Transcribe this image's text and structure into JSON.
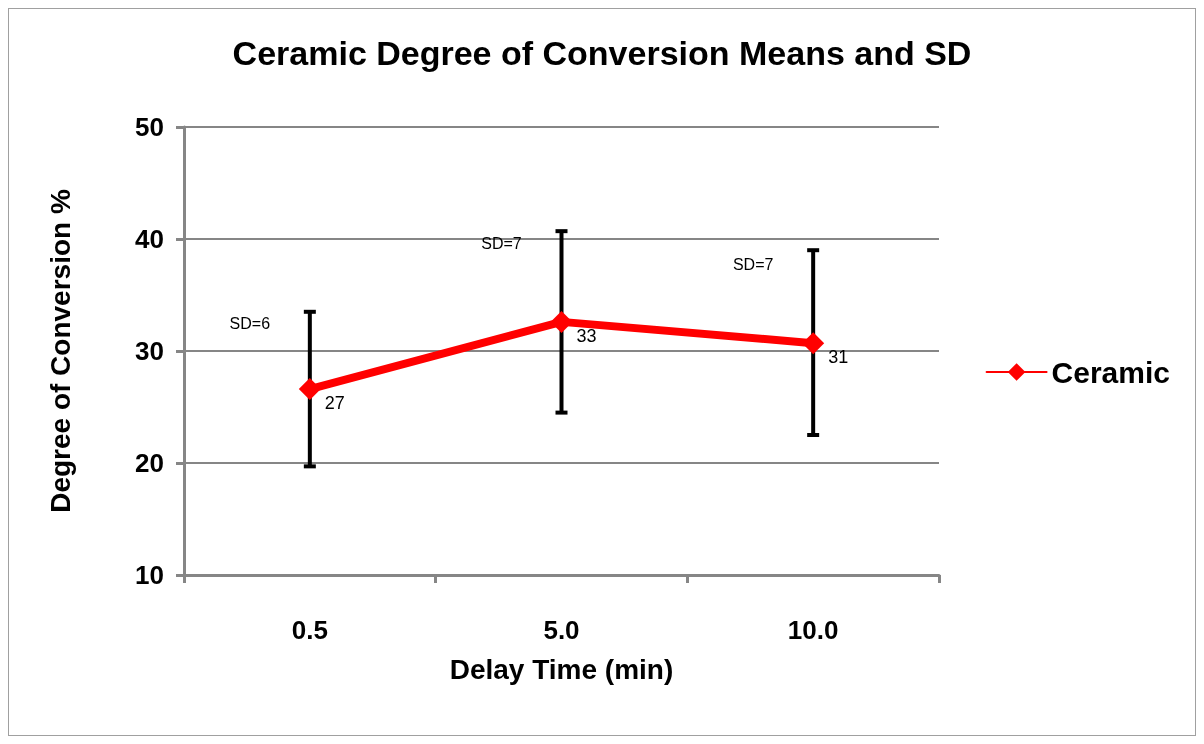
{
  "chart_data": {
    "type": "line",
    "title": "Ceramic Degree of Conversion Means and SD",
    "xlabel": "Delay Time (min)",
    "ylabel": "Degree of Conversion %",
    "categories": [
      "0.5",
      "5.0",
      "10.0"
    ],
    "series": [
      {
        "name": "Ceramic",
        "color": "#ff0000",
        "values": [
          26.6,
          32.6,
          30.7
        ],
        "value_labels": [
          "27",
          "33",
          "31"
        ],
        "errors": [
          [
            19.7,
            33.5
          ],
          [
            24.5,
            40.7
          ],
          [
            22.5,
            39.0
          ]
        ]
      }
    ],
    "ylim": [
      10,
      50
    ],
    "yticks": [
      10,
      20,
      30,
      40,
      50
    ],
    "grid": "y",
    "legend": "right",
    "marker": "diamond",
    "line_style": "solid",
    "annotations": [
      {
        "text": "SD=6",
        "x": "0.5",
        "y": 32.5
      },
      {
        "text": "SD=7",
        "x": "5.0",
        "y": 39.6
      },
      {
        "text": "SD=7",
        "x": "10.0",
        "y": 37.7
      }
    ]
  }
}
